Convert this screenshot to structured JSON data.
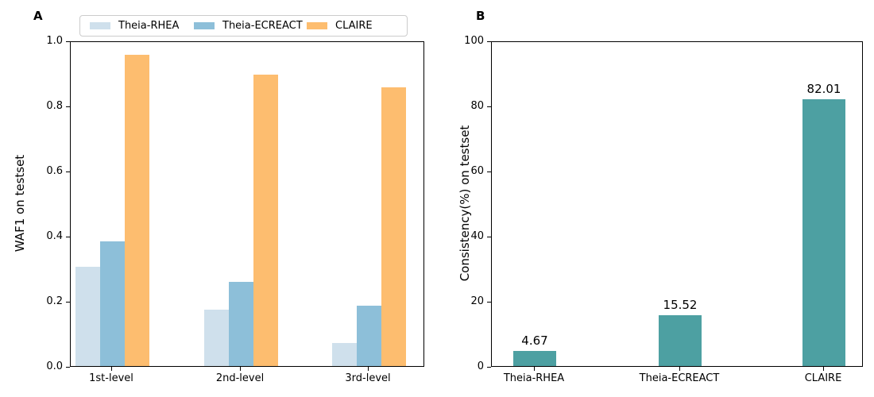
{
  "figure": {
    "panel_a_letter": "A",
    "panel_b_letter": "B"
  },
  "colors": {
    "theia_rhea": "#cfe0ec",
    "theia_ecreact": "#8dbfd9",
    "claire": "#fdbd6f",
    "consistency_bar": "#4da0a2",
    "axis": "#000000",
    "legend_border": "#cccccc"
  },
  "chart_data": [
    {
      "type": "bar",
      "panel": "A",
      "ylabel": "WAF1 on testset",
      "ylim": [
        0,
        1.0
      ],
      "yticks": [
        "0.0",
        "0.2",
        "0.4",
        "0.6",
        "0.8",
        "1.0"
      ],
      "categories": [
        "1st-level",
        "2nd-level",
        "3rd-level"
      ],
      "series": [
        {
          "name": "Theia-RHEA",
          "color_key": "theia_rhea",
          "values": [
            0.305,
            0.172,
            0.071
          ]
        },
        {
          "name": "Theia-ECREACT",
          "color_key": "theia_ecreact",
          "values": [
            0.384,
            0.258,
            0.186
          ]
        },
        {
          "name": "CLAIRE",
          "color_key": "claire",
          "values": [
            0.955,
            0.895,
            0.856
          ]
        }
      ],
      "legend_position": "top",
      "grid": false
    },
    {
      "type": "bar",
      "panel": "B",
      "ylabel": "Consistency(%) on testset",
      "ylim": [
        0,
        100
      ],
      "yticks": [
        "0",
        "20",
        "40",
        "60",
        "80",
        "100"
      ],
      "categories": [
        "Theia-RHEA",
        "Theia-ECREACT",
        "CLAIRE"
      ],
      "values": [
        4.67,
        15.52,
        82.01
      ],
      "bar_labels": [
        "4.67",
        "15.52",
        "82.01"
      ],
      "color_key": "consistency_bar",
      "grid": false
    }
  ]
}
